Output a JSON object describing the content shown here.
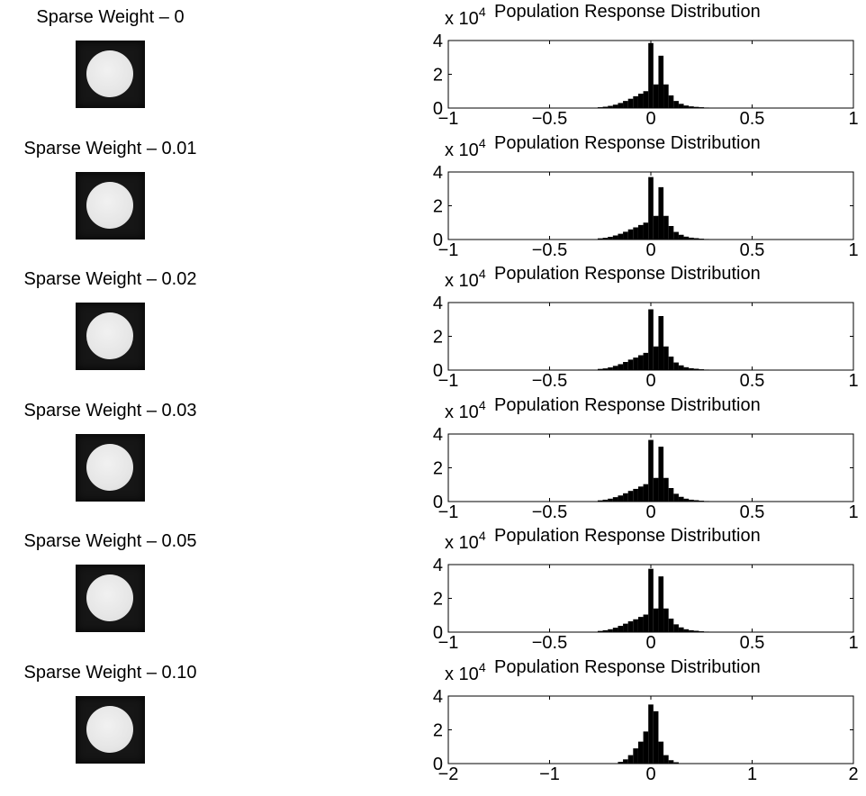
{
  "chart_data": [
    {
      "type": "bar",
      "panel_title": "Sparse Weight – 0",
      "title": "Population Response Distribution",
      "scale_prefix": "x 10",
      "scale_exponent": "4",
      "xlim": [
        -1,
        1
      ],
      "ylim": [
        0,
        40000
      ],
      "xticks": [
        "−1",
        "−0.5",
        "0",
        "0.5",
        "1"
      ],
      "yticks": [
        "0",
        "2",
        "4"
      ],
      "x": [
        -0.25,
        -0.225,
        -0.2,
        -0.175,
        -0.15,
        -0.125,
        -0.1,
        -0.075,
        -0.05,
        -0.025,
        0,
        0.025,
        0.05,
        0.075,
        0.1,
        0.125,
        0.15,
        0.175,
        0.2,
        0.225,
        0.25,
        0.275,
        0.3
      ],
      "values": [
        500,
        800,
        1300,
        2000,
        3000,
        4200,
        5500,
        7000,
        8500,
        10000,
        38500,
        14000,
        31000,
        14000,
        7500,
        4200,
        2500,
        1500,
        1000,
        700,
        500,
        300,
        200
      ]
    },
    {
      "type": "bar",
      "panel_title": "Sparse Weight – 0.01",
      "title": "Population Response Distribution",
      "scale_prefix": "x 10",
      "scale_exponent": "4",
      "xlim": [
        -1,
        1
      ],
      "ylim": [
        0,
        40000
      ],
      "xticks": [
        "−1",
        "−0.5",
        "0",
        "0.5",
        "1"
      ],
      "yticks": [
        "0",
        "2",
        "4"
      ],
      "x": [
        -0.25,
        -0.225,
        -0.2,
        -0.175,
        -0.15,
        -0.125,
        -0.1,
        -0.075,
        -0.05,
        -0.025,
        0,
        0.025,
        0.05,
        0.075,
        0.1,
        0.125,
        0.15,
        0.175,
        0.2,
        0.225,
        0.25,
        0.275,
        0.3
      ],
      "values": [
        700,
        1000,
        1600,
        2400,
        3400,
        4600,
        6000,
        7200,
        8600,
        10000,
        37000,
        14000,
        31000,
        14000,
        8000,
        4500,
        2800,
        1700,
        1100,
        800,
        500,
        300,
        200
      ]
    },
    {
      "type": "bar",
      "panel_title": "Sparse Weight – 0.02",
      "title": "Population Response Distribution",
      "scale_prefix": "x 10",
      "scale_exponent": "4",
      "xlim": [
        -1,
        1
      ],
      "ylim": [
        0,
        40000
      ],
      "xticks": [
        "−1",
        "−0.5",
        "0",
        "0.5",
        "1"
      ],
      "yticks": [
        "0",
        "2",
        "4"
      ],
      "x": [
        -0.25,
        -0.225,
        -0.2,
        -0.175,
        -0.15,
        -0.125,
        -0.1,
        -0.075,
        -0.05,
        -0.025,
        0,
        0.025,
        0.05,
        0.075,
        0.1,
        0.125,
        0.15,
        0.175,
        0.2,
        0.225,
        0.25,
        0.275,
        0.3
      ],
      "values": [
        700,
        1000,
        1600,
        2500,
        3500,
        4800,
        6200,
        7400,
        8800,
        10200,
        36000,
        14000,
        32000,
        14000,
        8000,
        4500,
        2800,
        1700,
        1100,
        800,
        500,
        300,
        200
      ]
    },
    {
      "type": "bar",
      "panel_title": "Sparse Weight – 0.03",
      "title": "Population Response Distribution",
      "scale_prefix": "x 10",
      "scale_exponent": "4",
      "xlim": [
        -1,
        1
      ],
      "ylim": [
        0,
        40000
      ],
      "xticks": [
        "−1",
        "−0.5",
        "0",
        "0.5",
        "1"
      ],
      "yticks": [
        "0",
        "2",
        "4"
      ],
      "x": [
        -0.25,
        -0.225,
        -0.2,
        -0.175,
        -0.15,
        -0.125,
        -0.1,
        -0.075,
        -0.05,
        -0.025,
        0,
        0.025,
        0.05,
        0.075,
        0.1,
        0.125,
        0.15,
        0.175,
        0.2,
        0.225,
        0.25,
        0.275,
        0.3
      ],
      "values": [
        700,
        1100,
        1700,
        2600,
        3600,
        4900,
        6300,
        7500,
        8900,
        10300,
        36500,
        14000,
        32500,
        14000,
        8000,
        4600,
        2800,
        1700,
        1100,
        800,
        500,
        300,
        200
      ]
    },
    {
      "type": "bar",
      "panel_title": "Sparse Weight – 0.05",
      "title": "Population Response Distribution",
      "scale_prefix": "x 10",
      "scale_exponent": "4",
      "xlim": [
        -1,
        1
      ],
      "ylim": [
        0,
        40000
      ],
      "xticks": [
        "−1",
        "−0.5",
        "0",
        "0.5",
        "1"
      ],
      "yticks": [
        "0",
        "2",
        "4"
      ],
      "x": [
        -0.25,
        -0.225,
        -0.2,
        -0.175,
        -0.15,
        -0.125,
        -0.1,
        -0.075,
        -0.05,
        -0.025,
        0,
        0.025,
        0.05,
        0.075,
        0.1,
        0.125,
        0.15,
        0.175,
        0.2,
        0.225,
        0.25,
        0.275,
        0.3
      ],
      "values": [
        700,
        1100,
        1700,
        2600,
        3700,
        5000,
        6400,
        7600,
        9000,
        10400,
        37500,
        14000,
        33000,
        14000,
        8000,
        4600,
        2800,
        1700,
        1100,
        800,
        500,
        300,
        200
      ]
    },
    {
      "type": "bar",
      "panel_title": "Sparse Weight – 0.10",
      "title": "Population Response Distribution",
      "scale_prefix": "x 10",
      "scale_exponent": "4",
      "xlim": [
        -2,
        2
      ],
      "ylim": [
        0,
        40000
      ],
      "xticks": [
        "−2",
        "−1",
        "0",
        "1",
        "2"
      ],
      "yticks": [
        "0",
        "2",
        "4"
      ],
      "x": [
        -0.3,
        -0.25,
        -0.2,
        -0.15,
        -0.1,
        -0.05,
        0,
        0.05,
        0.1,
        0.15,
        0.2,
        0.25
      ],
      "values": [
        1000,
        2500,
        5000,
        9000,
        13000,
        19000,
        35000,
        31000,
        13000,
        5000,
        2000,
        800
      ]
    }
  ]
}
